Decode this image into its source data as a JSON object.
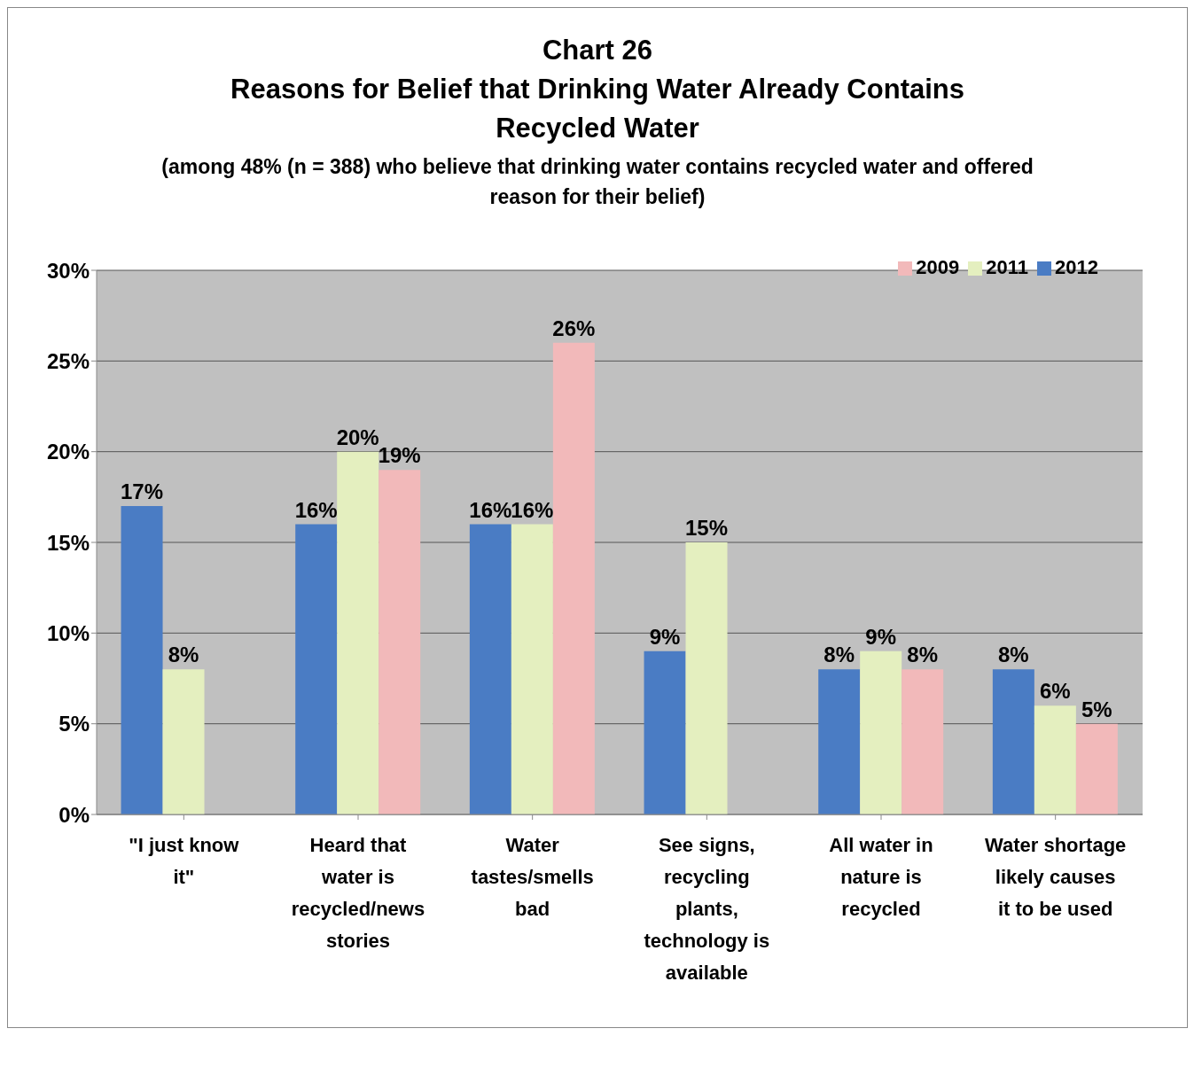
{
  "chart_data": {
    "type": "bar",
    "title": "Chart 26",
    "subtitle": "Reasons for Belief that Drinking Water Already Contains Recycled Water",
    "annotations": [
      "(among 48% (n = 388) who believe that drinking water contains recycled water and offered reason for their belief)"
    ],
    "categories": [
      "\"I just know it\"",
      "Heard that water is recycled/news stories",
      "Water tastes/smells bad",
      "See signs, recycling plants, technology is available",
      "All water in nature is recycled",
      "Water shortage likely causes it to be used"
    ],
    "series": [
      {
        "name": "2012",
        "color": "#4a7cc4",
        "values": [
          17,
          16,
          16,
          9,
          8,
          8
        ],
        "value_labels": [
          "17%",
          "16%",
          "16%",
          "9%",
          "8%",
          "8%"
        ]
      },
      {
        "name": "2011",
        "color": "#e4efbf",
        "values": [
          8,
          20,
          16,
          15,
          9,
          6
        ],
        "value_labels": [
          "8%",
          "20%",
          "16%",
          "15%",
          "9%",
          "6%"
        ]
      },
      {
        "name": "2009",
        "color": "#f2b9ba",
        "values": [
          null,
          19,
          26,
          null,
          8,
          5
        ],
        "value_labels": [
          null,
          "19%",
          "26%",
          null,
          "8%",
          "5%"
        ]
      }
    ],
    "ylim": [
      0,
      30
    ],
    "yticks": [
      {
        "value": 0,
        "label": "0%"
      },
      {
        "value": 5,
        "label": "5%"
      },
      {
        "value": 10,
        "label": "10%"
      },
      {
        "value": 15,
        "label": "15%"
      },
      {
        "value": 20,
        "label": "20%"
      },
      {
        "value": 25,
        "label": "25%"
      },
      {
        "value": 30,
        "label": "30%"
      }
    ],
    "grid": "y",
    "legend": "top right"
  }
}
